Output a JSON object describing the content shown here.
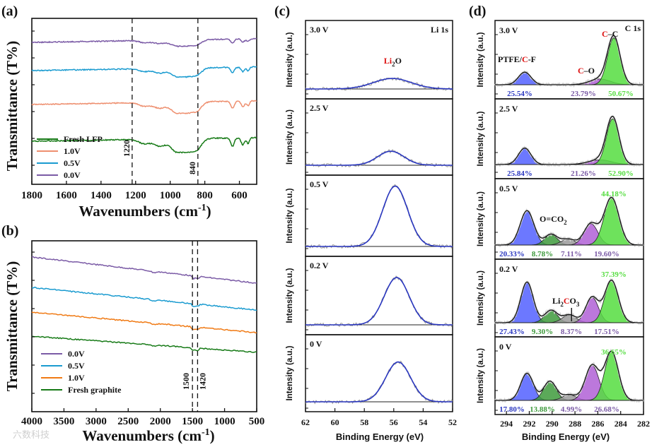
{
  "colors": {
    "green": "#167a16",
    "salmon": "#ee8f6f",
    "cyan": "#1a9bd0",
    "purple": "#7b5ba6",
    "orange": "#f07a14",
    "fitblue": "#2a37c0",
    "raw": "#9a9a9a",
    "blueFill": "#5260ff",
    "greenFill": "#55dd40",
    "purpleFill": "#b060d6",
    "darkGreenFill": "#3e9a3c",
    "greyFill": "#9a9a9a"
  },
  "chart_data": [
    {
      "panel": "(a)",
      "type": "line",
      "xlabel": "Wavenumbers (cm",
      "xlabel_sup": "-1",
      "xlabel_close": ")",
      "ylabel": "Transmittance (T%)",
      "xlim": [
        1800,
        500
      ],
      "xticks": [
        "1800",
        "1600",
        "1400",
        "1200",
        "1000",
        "800",
        "600"
      ],
      "markers": [
        {
          "x": 1220,
          "label": "1220"
        },
        {
          "x": 840,
          "label": "840"
        }
      ],
      "series": [
        {
          "name": "Fresh LFP",
          "color": "green",
          "offset": 0
        },
        {
          "name": "1.0V",
          "color": "salmon",
          "offset": 1
        },
        {
          "name": "0.5V",
          "color": "cyan",
          "offset": 2
        },
        {
          "name": "0.0V",
          "color": "purple",
          "offset": 3
        }
      ]
    },
    {
      "panel": "(b)",
      "type": "line",
      "xlabel": "Wavenumbers (cm",
      "xlabel_sup": "-1",
      "xlabel_close": ")",
      "ylabel": "Transmittance (T%)",
      "xlim": [
        4000,
        500
      ],
      "xticks": [
        "4000",
        "3500",
        "3000",
        "2500",
        "2000",
        "1500",
        "1000",
        "500"
      ],
      "markers": [
        {
          "x": 1500,
          "label": "1500"
        },
        {
          "x": 1420,
          "label": "1420"
        }
      ],
      "series": [
        {
          "name": "0.0V",
          "color": "purple"
        },
        {
          "name": "0.5V",
          "color": "cyan"
        },
        {
          "name": "1.0V",
          "color": "orange"
        },
        {
          "name": "Fresh graphite",
          "color": "green"
        }
      ]
    },
    {
      "panel": "(c)",
      "type": "line",
      "title": "Li 1s",
      "xlabel": "Binding Energy (eV)",
      "ylabel": "Intensity (a.u.)",
      "xlim": [
        62,
        52
      ],
      "xticks": [
        "62",
        "60",
        "58",
        "56",
        "54",
        "52"
      ],
      "peak_label": {
        "prefix": "Li",
        "sub": "2",
        "suffix": "O"
      },
      "subplots": [
        {
          "label": "3.0 V",
          "center": 56.1,
          "height": 0.16,
          "width": 1.3
        },
        {
          "label": "2.5 V",
          "center": 56.2,
          "height": 0.22,
          "width": 0.9
        },
        {
          "label": "0.5 V",
          "center": 55.9,
          "height": 0.88,
          "width": 0.85
        },
        {
          "label": "0.2 V",
          "center": 55.8,
          "height": 0.72,
          "width": 0.85
        },
        {
          "label": "0 V",
          "center": 55.7,
          "height": 0.62,
          "width": 0.85
        }
      ]
    },
    {
      "panel": "(d)",
      "type": "line",
      "title": "C 1s",
      "xlabel": "Binding Energy (eV)",
      "ylabel": "Intensity (a.u.)",
      "xlim": [
        295,
        282
      ],
      "xticks": [
        "294",
        "292",
        "290",
        "288",
        "286",
        "284",
        "282"
      ],
      "component_labels": {
        "ptfe": {
          "a": "PTFE/",
          "b": "C",
          "c": "-F"
        },
        "co": {
          "a": "C",
          "b": "–O"
        },
        "cc": {
          "a": "C",
          "b": "–C"
        },
        "oco2": {
          "a": "O=CO",
          "sub": "2"
        },
        "li2co3": {
          "a": "Li",
          "sub": "2",
          "b": "C",
          "c": "O",
          "sub2": "3"
        }
      },
      "subplots": [
        {
          "label": "3.0 V",
          "percentages": [
            "25.54%",
            "23.79%",
            "50.67%"
          ],
          "peaks": [
            {
              "c": 292.4,
              "h": 0.22,
              "w": 0.55,
              "fill": "blueFill"
            },
            {
              "c": 285.8,
              "h": 0.1,
              "w": 0.9,
              "fill": "purpleFill"
            },
            {
              "c": 284.6,
              "h": 0.82,
              "w": 0.55,
              "fill": "greenFill"
            }
          ]
        },
        {
          "label": "2.5 V",
          "percentages": [
            "25.84%",
            "21.26%",
            "52.90%"
          ],
          "peaks": [
            {
              "c": 292.4,
              "h": 0.28,
              "w": 0.55,
              "fill": "blueFill"
            },
            {
              "c": 285.8,
              "h": 0.08,
              "w": 1.0,
              "fill": "purpleFill"
            },
            {
              "c": 284.7,
              "h": 0.78,
              "w": 0.55,
              "fill": "greenFill"
            }
          ]
        },
        {
          "label": "0.5 V",
          "percentages": [
            "20.33%",
            "8.78%",
            "7.11%",
            "19.60%",
            "44.18%"
          ],
          "peaks": [
            {
              "c": 292.2,
              "h": 0.58,
              "w": 0.6,
              "fill": "blueFill"
            },
            {
              "c": 290.1,
              "h": 0.18,
              "w": 0.55,
              "fill": "darkGreenFill"
            },
            {
              "c": 288.6,
              "h": 0.1,
              "w": 0.6,
              "fill": "greyFill"
            },
            {
              "c": 286.6,
              "h": 0.36,
              "w": 0.6,
              "fill": "purpleFill"
            },
            {
              "c": 284.8,
              "h": 0.8,
              "w": 0.65,
              "fill": "greenFill"
            }
          ]
        },
        {
          "label": "0.2 V",
          "percentages": [
            "27.43%",
            "9.30%",
            "8.37%",
            "17.51%",
            "37.39%"
          ],
          "peaks": [
            {
              "c": 292.2,
              "h": 0.72,
              "w": 0.55,
              "fill": "blueFill"
            },
            {
              "c": 290.1,
              "h": 0.22,
              "w": 0.55,
              "fill": "darkGreenFill"
            },
            {
              "c": 288.5,
              "h": 0.14,
              "w": 0.6,
              "fill": "greyFill"
            },
            {
              "c": 286.5,
              "h": 0.45,
              "w": 0.55,
              "fill": "purpleFill"
            },
            {
              "c": 284.8,
              "h": 0.75,
              "w": 0.6,
              "fill": "greenFill"
            }
          ]
        },
        {
          "label": "0 V",
          "percentages": [
            "17.80%",
            "13.88%",
            "4.99%",
            "26.68%",
            "36.65%"
          ],
          "peaks": [
            {
              "c": 292.2,
              "h": 0.48,
              "w": 0.55,
              "fill": "blueFill"
            },
            {
              "c": 290.2,
              "h": 0.34,
              "w": 0.55,
              "fill": "darkGreenFill"
            },
            {
              "c": 288.5,
              "h": 0.1,
              "w": 0.6,
              "fill": "greyFill"
            },
            {
              "c": 286.5,
              "h": 0.62,
              "w": 0.6,
              "fill": "purpleFill"
            },
            {
              "c": 284.8,
              "h": 0.86,
              "w": 0.6,
              "fill": "greenFill"
            }
          ]
        }
      ]
    }
  ],
  "watermark": "六数科技"
}
